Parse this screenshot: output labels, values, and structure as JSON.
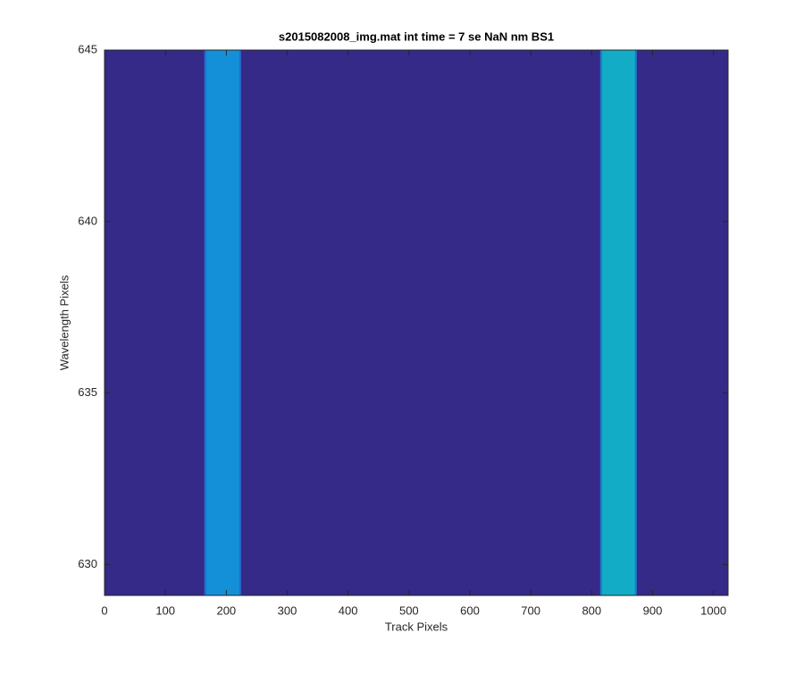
{
  "chart_data": {
    "type": "image",
    "title": "s2015082008_img.mat int time = 7 se  NaN nm BS1",
    "xlabel": "Track Pixels",
    "ylabel": "Wavelength Pixels",
    "xlim": [
      0,
      1024
    ],
    "ylim": [
      629.1,
      645
    ],
    "xticks": [
      0,
      100,
      200,
      300,
      400,
      500,
      600,
      700,
      800,
      900,
      1000
    ],
    "yticks": [
      630,
      635,
      640,
      645
    ],
    "background": "#352a87",
    "bands": [
      {
        "x0": 164,
        "x1": 224,
        "color": "#1390d8"
      },
      {
        "x0": 814,
        "x1": 874,
        "color": "#12acc6"
      }
    ]
  }
}
